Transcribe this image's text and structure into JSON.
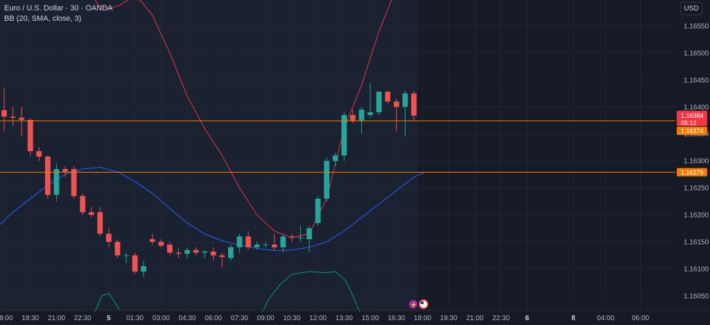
{
  "header": {
    "title": "Euro / U.S. Dollar · 30 · OANDA",
    "indicator": "BB (20, SMA, close, 3)"
  },
  "currency_button": "USD",
  "price_tags": {
    "last_price": "1.16384",
    "countdown": "05:12",
    "line1_price": "1.16374",
    "line2_price": "1.16279"
  },
  "colors": {
    "up": "#26a69a",
    "down": "#ef5350",
    "upper_band": "#f23645",
    "basis": "#2962ff",
    "lower_band": "#089981",
    "horizontal_line": "#f57c00"
  },
  "chart_data": {
    "type": "candlestick",
    "title": "Euro / U.S. Dollar · 30 · OANDA",
    "y_ticks": [
      1.1655,
      1.165,
      1.1645,
      1.164,
      1.1635,
      1.163,
      1.1625,
      1.162,
      1.1615,
      1.161,
      1.1605
    ],
    "x_ticks": [
      "18:00",
      "19:30",
      "21:00",
      "22:30",
      "5",
      "01:30",
      "03:00",
      "04:30",
      "06:00",
      "07:30",
      "09:00",
      "10:30",
      "12:00",
      "13:30",
      "15:00",
      "16:30",
      "18:00",
      "19:30",
      "21:00",
      "22:30",
      "6",
      "8",
      "04:00",
      "06:00"
    ],
    "x_tick_times": [
      0,
      1.5,
      3,
      4.5,
      6,
      7.5,
      9,
      10.5,
      12,
      13.5,
      15,
      16.5,
      18,
      19.5,
      21,
      22.5,
      24,
      25.5,
      27,
      28.5,
      30,
      32.65,
      34.5,
      36.5
    ],
    "ylim": [
      1.16023,
      1.16598
    ],
    "xlim_hours": [
      -0.24,
      38.5
    ],
    "candles": [
      {
        "t": 0,
        "o": 1.16394,
        "h": 1.16435,
        "l": 1.16355,
        "c": 1.16382
      },
      {
        "t": 0.5,
        "o": 1.16382,
        "h": 1.164,
        "l": 1.16365,
        "c": 1.1638
      },
      {
        "t": 1,
        "o": 1.1638,
        "h": 1.164,
        "l": 1.16345,
        "c": 1.16376
      },
      {
        "t": 1.5,
        "o": 1.16376,
        "h": 1.16379,
        "l": 1.1631,
        "c": 1.16318
      },
      {
        "t": 2,
        "o": 1.16318,
        "h": 1.16325,
        "l": 1.163,
        "c": 1.16308
      },
      {
        "t": 2.5,
        "o": 1.16308,
        "h": 1.1631,
        "l": 1.1623,
        "c": 1.16237
      },
      {
        "t": 3,
        "o": 1.16237,
        "h": 1.16295,
        "l": 1.16225,
        "c": 1.16285
      },
      {
        "t": 3.5,
        "o": 1.16285,
        "h": 1.1629,
        "l": 1.1627,
        "c": 1.1628
      },
      {
        "t": 4,
        "o": 1.16285,
        "h": 1.1629,
        "l": 1.1623,
        "c": 1.16235
      },
      {
        "t": 4.5,
        "o": 1.16235,
        "h": 1.1624,
        "l": 1.162,
        "c": 1.16205
      },
      {
        "t": 5,
        "o": 1.16205,
        "h": 1.16215,
        "l": 1.16195,
        "c": 1.162
      },
      {
        "t": 5.5,
        "o": 1.16205,
        "h": 1.16215,
        "l": 1.1616,
        "c": 1.16165
      },
      {
        "t": 6,
        "o": 1.16165,
        "h": 1.16175,
        "l": 1.1614,
        "c": 1.1615
      },
      {
        "t": 6.5,
        "o": 1.1615,
        "h": 1.16155,
        "l": 1.1612,
        "c": 1.16125
      },
      {
        "t": 7,
        "o": 1.16125,
        "h": 1.1613,
        "l": 1.1611,
        "c": 1.16125
      },
      {
        "t": 7.5,
        "o": 1.16125,
        "h": 1.1613,
        "l": 1.1609,
        "c": 1.16095
      },
      {
        "t": 8,
        "o": 1.16095,
        "h": 1.16115,
        "l": 1.16085,
        "c": 1.16105
      },
      {
        "t": 8.5,
        "o": 1.16155,
        "h": 1.16165,
        "l": 1.16145,
        "c": 1.1615
      },
      {
        "t": 9,
        "o": 1.1615,
        "h": 1.16155,
        "l": 1.1614,
        "c": 1.16143
      },
      {
        "t": 9.5,
        "o": 1.16145,
        "h": 1.1615,
        "l": 1.16125,
        "c": 1.1613
      },
      {
        "t": 10,
        "o": 1.1613,
        "h": 1.1614,
        "l": 1.1612,
        "c": 1.16128
      },
      {
        "t": 10.5,
        "o": 1.16128,
        "h": 1.1614,
        "l": 1.1612,
        "c": 1.16135
      },
      {
        "t": 11,
        "o": 1.16135,
        "h": 1.1614,
        "l": 1.16125,
        "c": 1.1613
      },
      {
        "t": 11.5,
        "o": 1.1613,
        "h": 1.16135,
        "l": 1.1612,
        "c": 1.16132
      },
      {
        "t": 12,
        "o": 1.16132,
        "h": 1.1614,
        "l": 1.16115,
        "c": 1.16125
      },
      {
        "t": 12.5,
        "o": 1.16125,
        "h": 1.1613,
        "l": 1.16103,
        "c": 1.16122
      },
      {
        "t": 13,
        "o": 1.1612,
        "h": 1.16145,
        "l": 1.16115,
        "c": 1.1614
      },
      {
        "t": 13.5,
        "o": 1.1614,
        "h": 1.16165,
        "l": 1.1613,
        "c": 1.1616
      },
      {
        "t": 14,
        "o": 1.1616,
        "h": 1.1617,
        "l": 1.16135,
        "c": 1.1614
      },
      {
        "t": 14.5,
        "o": 1.1614,
        "h": 1.1615,
        "l": 1.16135,
        "c": 1.16145
      },
      {
        "t": 15,
        "o": 1.16145,
        "h": 1.1615,
        "l": 1.1614,
        "c": 1.16145
      },
      {
        "t": 15.5,
        "o": 1.16145,
        "h": 1.16165,
        "l": 1.16135,
        "c": 1.1614
      },
      {
        "t": 16,
        "o": 1.1614,
        "h": 1.16165,
        "l": 1.1613,
        "c": 1.1616
      },
      {
        "t": 16.5,
        "o": 1.1616,
        "h": 1.16165,
        "l": 1.1615,
        "c": 1.16158
      },
      {
        "t": 17,
        "o": 1.16158,
        "h": 1.1618,
        "l": 1.1615,
        "c": 1.16158
      },
      {
        "t": 17.5,
        "o": 1.16155,
        "h": 1.1618,
        "l": 1.1613,
        "c": 1.16175
      },
      {
        "t": 18,
        "o": 1.16185,
        "h": 1.16235,
        "l": 1.1618,
        "c": 1.1623
      },
      {
        "t": 18.5,
        "o": 1.1623,
        "h": 1.16305,
        "l": 1.16225,
        "c": 1.163
      },
      {
        "t": 19,
        "o": 1.163,
        "h": 1.16315,
        "l": 1.1629,
        "c": 1.1631
      },
      {
        "t": 19.5,
        "o": 1.1631,
        "h": 1.1639,
        "l": 1.163,
        "c": 1.16385
      },
      {
        "t": 20,
        "o": 1.16385,
        "h": 1.16395,
        "l": 1.1637,
        "c": 1.16375
      },
      {
        "t": 20.5,
        "o": 1.16375,
        "h": 1.164,
        "l": 1.1635,
        "c": 1.16395
      },
      {
        "t": 21,
        "o": 1.16385,
        "h": 1.16445,
        "l": 1.1638,
        "c": 1.1639
      },
      {
        "t": 21.5,
        "o": 1.1639,
        "h": 1.1643,
        "l": 1.16385,
        "c": 1.16428
      },
      {
        "t": 22,
        "o": 1.16428,
        "h": 1.1643,
        "l": 1.16405,
        "c": 1.1641
      },
      {
        "t": 22.5,
        "o": 1.1641,
        "h": 1.16415,
        "l": 1.16355,
        "c": 1.164
      },
      {
        "t": 23,
        "o": 1.164,
        "h": 1.1643,
        "l": 1.16345,
        "c": 1.16425
      },
      {
        "t": 23.5,
        "o": 1.16425,
        "h": 1.1643,
        "l": 1.16375,
        "c": 1.16384
      }
    ],
    "bb_upper": [
      {
        "t": 5.1,
        "v": 1.16605
      },
      {
        "t": 5.4,
        "v": 1.16588
      },
      {
        "t": 6.0,
        "v": 1.16582
      },
      {
        "t": 6.6,
        "v": 1.16588
      },
      {
        "t": 7.2,
        "v": 1.166
      },
      {
        "t": 7.8,
        "v": 1.16598
      },
      {
        "t": 8.5,
        "v": 1.1657
      },
      {
        "t": 9.5,
        "v": 1.165
      },
      {
        "t": 10.5,
        "v": 1.1642
      },
      {
        "t": 11.5,
        "v": 1.1636
      },
      {
        "t": 12.5,
        "v": 1.1631
      },
      {
        "t": 13.5,
        "v": 1.1625
      },
      {
        "t": 14.5,
        "v": 1.162
      },
      {
        "t": 15.5,
        "v": 1.1617
      },
      {
        "t": 16.5,
        "v": 1.16158
      },
      {
        "t": 17.5,
        "v": 1.16165
      },
      {
        "t": 18.5,
        "v": 1.1623
      },
      {
        "t": 19.5,
        "v": 1.1636
      },
      {
        "t": 20.5,
        "v": 1.1644
      },
      {
        "t": 21.5,
        "v": 1.1654
      },
      {
        "t": 22.0,
        "v": 1.1658
      },
      {
        "t": 22.3,
        "v": 1.16605
      }
    ],
    "bb_basis": [
      {
        "t": -0.24,
        "v": 1.16182
      },
      {
        "t": 0.5,
        "v": 1.16205
      },
      {
        "t": 1.5,
        "v": 1.1623
      },
      {
        "t": 2.5,
        "v": 1.16255
      },
      {
        "t": 3.5,
        "v": 1.16275
      },
      {
        "t": 4.5,
        "v": 1.16285
      },
      {
        "t": 5.5,
        "v": 1.16288
      },
      {
        "t": 6.5,
        "v": 1.1628
      },
      {
        "t": 7.5,
        "v": 1.16262
      },
      {
        "t": 8.5,
        "v": 1.1624
      },
      {
        "t": 9.5,
        "v": 1.16212
      },
      {
        "t": 10.5,
        "v": 1.16185
      },
      {
        "t": 11.5,
        "v": 1.16165
      },
      {
        "t": 12.5,
        "v": 1.16152
      },
      {
        "t": 13.5,
        "v": 1.16144
      },
      {
        "t": 14.5,
        "v": 1.16138
      },
      {
        "t": 15.5,
        "v": 1.16134
      },
      {
        "t": 16.5,
        "v": 1.16135
      },
      {
        "t": 17.5,
        "v": 1.1614
      },
      {
        "t": 18.5,
        "v": 1.1615
      },
      {
        "t": 19.5,
        "v": 1.1617
      },
      {
        "t": 20.5,
        "v": 1.16195
      },
      {
        "t": 21.5,
        "v": 1.1622
      },
      {
        "t": 22.5,
        "v": 1.16245
      },
      {
        "t": 23.5,
        "v": 1.1627
      },
      {
        "t": 24.2,
        "v": 1.1628
      }
    ],
    "bb_lower": [
      {
        "t": 5.2,
        "v": 1.1602
      },
      {
        "t": 5.6,
        "v": 1.1605
      },
      {
        "t": 6.0,
        "v": 1.16055
      },
      {
        "t": 6.6,
        "v": 1.16025
      },
      {
        "t": 14.8,
        "v": 1.1602
      },
      {
        "t": 15.2,
        "v": 1.16045
      },
      {
        "t": 15.8,
        "v": 1.1607
      },
      {
        "t": 16.5,
        "v": 1.1609
      },
      {
        "t": 17.5,
        "v": 1.16095
      },
      {
        "t": 18.5,
        "v": 1.16093
      },
      {
        "t": 19.0,
        "v": 1.16095
      },
      {
        "t": 19.6,
        "v": 1.16078
      },
      {
        "t": 20.0,
        "v": 1.1605
      },
      {
        "t": 20.4,
        "v": 1.1602
      }
    ],
    "horizontal_lines": [
      1.16374,
      1.16279
    ]
  }
}
